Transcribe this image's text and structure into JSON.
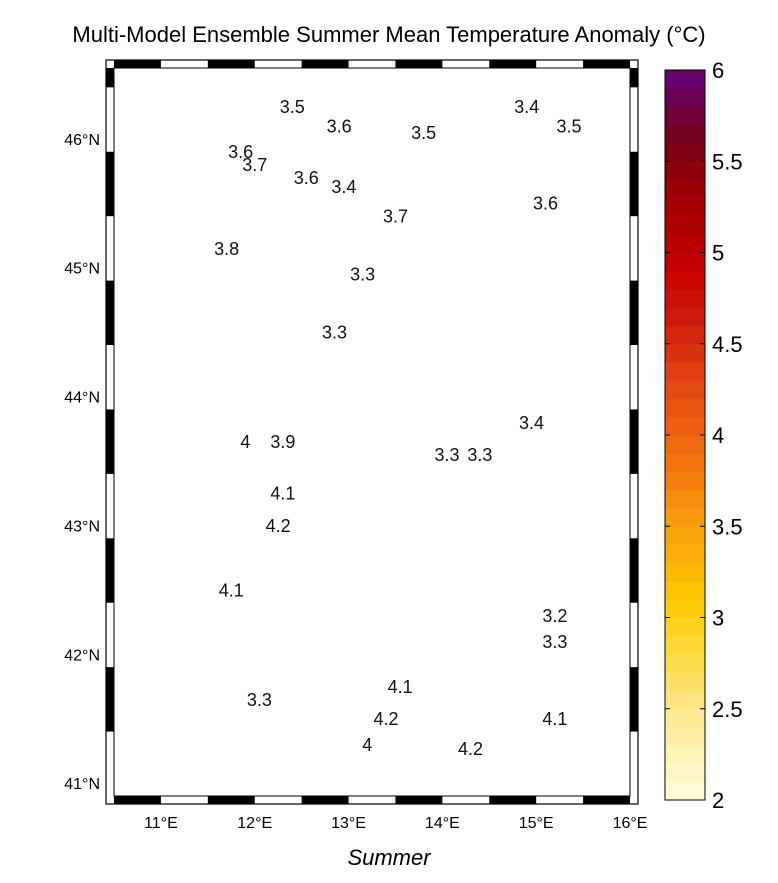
{
  "title": "Multi-Model Ensemble Summer Mean Temperature Anomaly (°C)",
  "x_caption": "Summer",
  "lat_labels": [
    "46°N",
    "45°N",
    "44°N",
    "43°N",
    "42°N",
    "41°N"
  ],
  "lon_labels": [
    "11°E",
    "12°E",
    "13°E",
    "14°E",
    "15°E",
    "16°E"
  ],
  "colorbar": {
    "min": 2,
    "max": 6,
    "tick_labels": [
      "6",
      "5.5",
      "5",
      "4.5",
      "4",
      "3.5",
      "3",
      "2.5",
      "2"
    ]
  },
  "contour_labels": [
    {
      "text": "3.5",
      "lon": 12.4,
      "lat": 46.2
    },
    {
      "text": "3.6",
      "lon": 12.9,
      "lat": 46.05
    },
    {
      "text": "3.5",
      "lon": 13.8,
      "lat": 46.0
    },
    {
      "text": "3.4",
      "lon": 14.9,
      "lat": 46.2
    },
    {
      "text": "3.5",
      "lon": 15.35,
      "lat": 46.05
    },
    {
      "text": "3.6",
      "lon": 11.85,
      "lat": 45.85
    },
    {
      "text": "3.7",
      "lon": 12.0,
      "lat": 45.75
    },
    {
      "text": "3.6",
      "lon": 12.55,
      "lat": 45.65
    },
    {
      "text": "3.4",
      "lon": 12.95,
      "lat": 45.58
    },
    {
      "text": "3.7",
      "lon": 13.5,
      "lat": 45.35
    },
    {
      "text": "3.6",
      "lon": 15.1,
      "lat": 45.45
    },
    {
      "text": "3.8",
      "lon": 11.7,
      "lat": 45.1
    },
    {
      "text": "3.3",
      "lon": 13.15,
      "lat": 44.9
    },
    {
      "text": "3.3",
      "lon": 12.85,
      "lat": 44.45
    },
    {
      "text": "4",
      "lon": 11.9,
      "lat": 43.6
    },
    {
      "text": "3.9",
      "lon": 12.3,
      "lat": 43.6
    },
    {
      "text": "3.3",
      "lon": 14.05,
      "lat": 43.5
    },
    {
      "text": "3.3",
      "lon": 14.4,
      "lat": 43.5
    },
    {
      "text": "3.4",
      "lon": 14.95,
      "lat": 43.75
    },
    {
      "text": "4.1",
      "lon": 12.3,
      "lat": 43.2
    },
    {
      "text": "4.2",
      "lon": 12.25,
      "lat": 42.95
    },
    {
      "text": "4.1",
      "lon": 11.75,
      "lat": 42.45
    },
    {
      "text": "3.2",
      "lon": 15.2,
      "lat": 42.25
    },
    {
      "text": "3.3",
      "lon": 15.2,
      "lat": 42.05
    },
    {
      "text": "3.3",
      "lon": 12.05,
      "lat": 41.6
    },
    {
      "text": "4.1",
      "lon": 13.55,
      "lat": 41.7
    },
    {
      "text": "4.2",
      "lon": 13.4,
      "lat": 41.45
    },
    {
      "text": "4.1",
      "lon": 15.2,
      "lat": 41.45
    },
    {
      "text": "4",
      "lon": 13.2,
      "lat": 41.25
    },
    {
      "text": "4.2",
      "lon": 14.3,
      "lat": 41.22
    }
  ]
}
